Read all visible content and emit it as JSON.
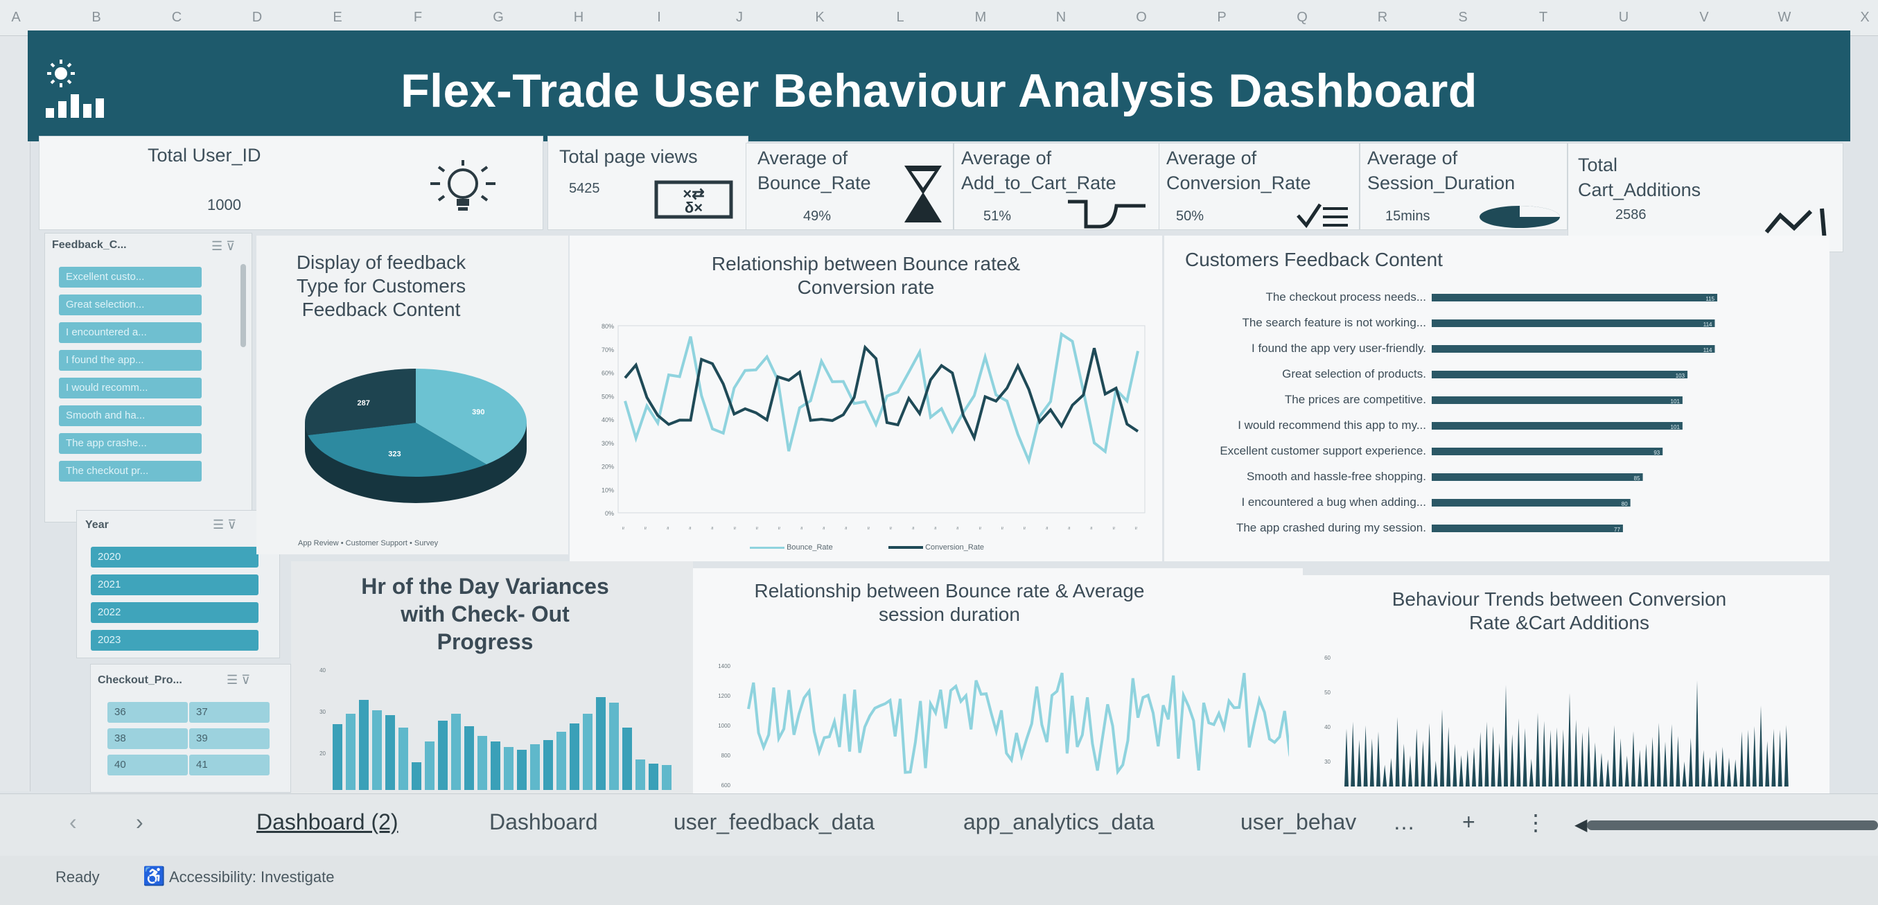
{
  "columns": [
    "A",
    "B",
    "C",
    "D",
    "E",
    "F",
    "G",
    "H",
    "I",
    "J",
    "K",
    "L",
    "M",
    "N",
    "O",
    "P",
    "Q",
    "R",
    "S",
    "T",
    "U",
    "V",
    "W",
    "X"
  ],
  "header": {
    "title": "Flex-Trade User Behaviour Analysis Dashboard",
    "logo_icon": "sun-bar-logo-icon"
  },
  "kpis": {
    "users": {
      "label": "Total User_ID",
      "value": "1000"
    },
    "page_views": {
      "label": "Total page views",
      "value": "5425"
    },
    "bounce": {
      "label1": "Average of",
      "label2": "Bounce_Rate",
      "value": "49%"
    },
    "cart_rate": {
      "label1": "Average of",
      "label2": "Add_to_Cart_Rate",
      "value": "51%"
    },
    "conversion": {
      "label1": "Average of",
      "label2": "Conversion_Rate",
      "value": "50%"
    },
    "session": {
      "label1": "Average of",
      "label2": "Session_Duration",
      "value": "15mins"
    },
    "cart_additions": {
      "label1": "Total",
      "label2": "Cart_Additions",
      "value": "2586"
    }
  },
  "slicers": {
    "feedback": {
      "title": "Feedback_C...",
      "items": [
        "Excellent custo...",
        "Great selection...",
        "I encountered a...",
        "I found the app...",
        "I would recomm...",
        "Smooth and ha...",
        "The app crashe...",
        "The checkout pr..."
      ]
    },
    "year": {
      "title": "Year",
      "items": [
        "2020",
        "2021",
        "2022",
        "2023"
      ]
    },
    "checkout": {
      "title": "Checkout_Pro...",
      "items": [
        "36",
        "37",
        "38",
        "39",
        "40",
        "41"
      ]
    }
  },
  "colors": {
    "banner": "#1e5a6c",
    "accent": "#3fa4bb",
    "dark": "#1f4a57",
    "light_line": "#8fd3de"
  },
  "charts": {
    "pie_title": [
      "Display of feedback",
      "Type for Customers",
      "Feedback Content"
    ],
    "pie_legend": "App Review • Customer Support • Survey",
    "line1_title": [
      "Relationship between Bounce  rate&",
      "Conversion rate"
    ],
    "line1_legend": {
      "a": "Bounce_Rate",
      "b": "Conversion_Rate"
    },
    "line1_years": [
      "2020",
      "2021",
      "2022",
      "2023"
    ],
    "line1_yticks": [
      "80%",
      "70%",
      "60%",
      "50%",
      "40%",
      "30%",
      "20%",
      "10%",
      "0%"
    ],
    "bar_title": "Customers Feedback Content",
    "hist_title": [
      "Hr of the Day Variances",
      "with Check- Out",
      "Progress"
    ],
    "line2_title": [
      "Relationship between Bounce rate & Average",
      "session duration"
    ],
    "line2_yticks": [
      "1400",
      "1200",
      "1000",
      "800",
      "600"
    ],
    "trend_title": [
      "Behaviour Trends between Conversion",
      "Rate &Cart Additions"
    ],
    "trend_yticks": [
      "60",
      "50",
      "40",
      "30"
    ]
  },
  "chart_data": [
    {
      "type": "pie",
      "title": "Display of feedback Type for Customers Feedback Content",
      "categories": [
        "App Review",
        "Customer Support",
        "Survey"
      ],
      "values": [
        390,
        323,
        287
      ],
      "legend": "bottom"
    },
    {
      "type": "bar",
      "title": "Customers Feedback Content",
      "orientation": "horizontal",
      "categories": [
        "The checkout process needs...",
        "The search feature is not working...",
        "I found the app very user-friendly.",
        "Great selection of products.",
        "The prices are competitive.",
        "I would recommend this app to my...",
        "Excellent customer support experience.",
        "Smooth and hassle-free shopping.",
        "I encountered a bug when adding...",
        "The app crashed during my session."
      ],
      "values": [
        115,
        114,
        114,
        103,
        101,
        101,
        93,
        85,
        80,
        77
      ]
    }
  ],
  "tabs": {
    "items": [
      "Dashboard (2)",
      "Dashboard",
      "user_feedback_data",
      "app_analytics_data",
      "user_behav"
    ],
    "more": "…",
    "add": "+"
  },
  "status": {
    "ready": "Ready",
    "accessibility": "Accessibility: Investigate"
  }
}
